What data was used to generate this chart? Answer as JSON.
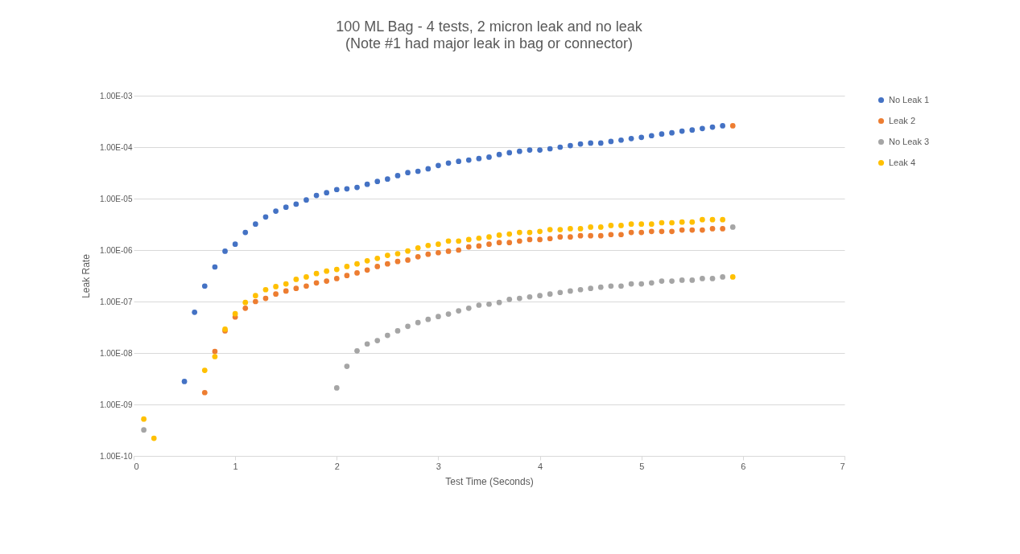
{
  "chart_data": {
    "type": "scatter",
    "title": "100 ML Bag - 4 tests, 2 micron leak and no leak",
    "subtitle": "(Note #1 had major leak in bag or connector)",
    "xlabel": "Test Time (Seconds)",
    "ylabel": "Leak Rate",
    "log": "y",
    "grid": "y",
    "legend": "right",
    "marker": "circle",
    "xlim": [
      0,
      7
    ],
    "xticks": [
      0,
      1,
      2,
      3,
      4,
      5,
      6,
      7
    ],
    "ylim": [
      1e-10,
      0.001
    ],
    "yticks": [
      {
        "value": 1e-10,
        "label": "1.00E-10"
      },
      {
        "value": 1e-09,
        "label": "1.00E-09"
      },
      {
        "value": 1e-08,
        "label": "1.00E-08"
      },
      {
        "value": 1e-07,
        "label": "1.00E-07"
      },
      {
        "value": 1e-06,
        "label": "1.00E-06"
      },
      {
        "value": 1e-05,
        "label": "1.00E-05"
      },
      {
        "value": 0.0001,
        "label": "1.00E-04"
      },
      {
        "value": 0.001,
        "label": "1.00E-03"
      }
    ],
    "series": [
      {
        "name": "No Leak 1",
        "color": "#4472c4",
        "x": [
          0.5,
          0.6,
          0.7,
          0.8,
          0.9,
          1.0,
          1.1,
          1.2,
          1.3,
          1.4,
          1.5,
          1.6,
          1.7,
          1.8,
          1.9,
          2.0,
          2.1,
          2.2,
          2.3,
          2.4,
          2.5,
          2.6,
          2.7,
          2.8,
          2.9,
          3.0,
          3.1,
          3.2,
          3.3,
          3.4,
          3.5,
          3.6,
          3.7,
          3.8,
          3.9,
          4.0,
          4.1,
          4.2,
          4.3,
          4.4,
          4.5,
          4.6,
          4.7,
          4.8,
          4.9,
          5.0,
          5.1,
          5.2,
          5.3,
          5.4,
          5.5,
          5.6,
          5.7,
          5.8
        ],
        "values": [
          2.8e-09,
          6.2e-08,
          2e-07,
          4.7e-07,
          9.5e-07,
          1.3e-06,
          2.2e-06,
          3.2e-06,
          4.4e-06,
          5.7e-06,
          6.8e-06,
          7.8e-06,
          9.4e-06,
          1.15e-05,
          1.3e-05,
          1.5e-05,
          1.55e-05,
          1.65e-05,
          1.9e-05,
          2.15e-05,
          2.4e-05,
          2.8e-05,
          3.2e-05,
          3.4e-05,
          3.8e-05,
          4.4e-05,
          4.9e-05,
          5.3e-05,
          5.6e-05,
          6e-05,
          6.4e-05,
          7.2e-05,
          7.8e-05,
          8.3e-05,
          8.8e-05,
          8.8e-05,
          9.3e-05,
          0.0001,
          0.000107,
          0.000115,
          0.00012,
          0.00012,
          0.000129,
          0.000137,
          0.000147,
          0.000155,
          0.000167,
          0.00018,
          0.00019,
          0.000205,
          0.000215,
          0.00023,
          0.000245,
          0.00026
        ]
      },
      {
        "name": "Leak 2",
        "color": "#ed7d31",
        "x": [
          0.7,
          0.8,
          0.9,
          1.0,
          1.1,
          1.2,
          1.3,
          1.4,
          1.5,
          1.6,
          1.7,
          1.8,
          1.9,
          2.0,
          2.1,
          2.2,
          2.3,
          2.4,
          2.5,
          2.6,
          2.7,
          2.8,
          2.9,
          3.0,
          3.1,
          3.2,
          3.3,
          3.4,
          3.5,
          3.6,
          3.7,
          3.8,
          3.9,
          4.0,
          4.1,
          4.2,
          4.3,
          4.4,
          4.5,
          4.6,
          4.7,
          4.8,
          4.9,
          5.0,
          5.1,
          5.2,
          5.3,
          5.4,
          5.5,
          5.6,
          5.7,
          5.8,
          5.9
        ],
        "values": [
          1.7e-09,
          1.07e-08,
          2.7e-08,
          5e-08,
          7.4e-08,
          1e-07,
          1.15e-07,
          1.4e-07,
          1.6e-07,
          1.8e-07,
          2e-07,
          2.3e-07,
          2.5e-07,
          2.8e-07,
          3.2e-07,
          3.6e-07,
          4.1e-07,
          4.8e-07,
          5.4e-07,
          6e-07,
          6.4e-07,
          7.4e-07,
          8.3e-07,
          8.9e-07,
          9.5e-07,
          1e-06,
          1.15e-06,
          1.2e-06,
          1.3e-06,
          1.4e-06,
          1.4e-06,
          1.5e-06,
          1.6e-06,
          1.6e-06,
          1.67e-06,
          1.8e-06,
          1.8e-06,
          1.9e-06,
          1.9e-06,
          1.9e-06,
          2e-06,
          2e-06,
          2.2e-06,
          2.2e-06,
          2.3e-06,
          2.3e-06,
          2.3e-06,
          2.45e-06,
          2.45e-06,
          2.45e-06,
          2.6e-06,
          2.6e-06,
          0.00026
        ]
      },
      {
        "name": "No Leak 3",
        "color": "#a5a5a5",
        "x": [
          0.1,
          2.0,
          2.1,
          2.2,
          2.3,
          2.4,
          2.5,
          2.6,
          2.7,
          2.8,
          2.9,
          3.0,
          3.1,
          3.2,
          3.3,
          3.4,
          3.5,
          3.6,
          3.7,
          3.8,
          3.9,
          4.0,
          4.1,
          4.2,
          4.3,
          4.4,
          4.5,
          4.6,
          4.7,
          4.8,
          4.9,
          5.0,
          5.1,
          5.2,
          5.3,
          5.4,
          5.5,
          5.6,
          5.7,
          5.8,
          5.9
        ],
        "values": [
          3.2e-10,
          2.1e-09,
          5.5e-09,
          1.1e-08,
          1.5e-08,
          1.74e-08,
          2.2e-08,
          2.7e-08,
          3.3e-08,
          3.9e-08,
          4.5e-08,
          5.1e-08,
          5.7e-08,
          6.6e-08,
          7.4e-08,
          8.5e-08,
          8.9e-08,
          9.6e-08,
          1.1e-07,
          1.15e-07,
          1.23e-07,
          1.3e-07,
          1.4e-07,
          1.5e-07,
          1.6e-07,
          1.7e-07,
          1.8e-07,
          1.9e-07,
          2e-07,
          2e-07,
          2.2e-07,
          2.2e-07,
          2.3e-07,
          2.5e-07,
          2.5e-07,
          2.6e-07,
          2.6e-07,
          2.8e-07,
          2.8e-07,
          3e-07,
          2.8e-06
        ]
      },
      {
        "name": "Leak 4",
        "color": "#ffc000",
        "x": [
          0.1,
          0.2,
          0.7,
          0.8,
          0.9,
          1.0,
          1.1,
          1.2,
          1.3,
          1.4,
          1.5,
          1.6,
          1.7,
          1.8,
          1.9,
          2.0,
          2.1,
          2.2,
          2.3,
          2.4,
          2.5,
          2.6,
          2.7,
          2.8,
          2.9,
          3.0,
          3.1,
          3.2,
          3.3,
          3.4,
          3.5,
          3.6,
          3.7,
          3.8,
          3.9,
          4.0,
          4.1,
          4.2,
          4.3,
          4.4,
          4.5,
          4.6,
          4.7,
          4.8,
          4.9,
          5.0,
          5.1,
          5.2,
          5.3,
          5.4,
          5.5,
          5.6,
          5.7,
          5.8,
          5.9
        ],
        "values": [
          5.2e-10,
          2.2e-10,
          4.6e-09,
          8.5e-09,
          2.9e-08,
          5.8e-08,
          9.6e-08,
          1.3e-07,
          1.7e-07,
          1.95e-07,
          2.2e-07,
          2.7e-07,
          3e-07,
          3.5e-07,
          3.9e-07,
          4.2e-07,
          4.8e-07,
          5.4e-07,
          6.2e-07,
          6.9e-07,
          7.9e-07,
          8.5e-07,
          9.6e-07,
          1.1e-06,
          1.23e-06,
          1.3e-06,
          1.5e-06,
          1.5e-06,
          1.6e-06,
          1.7e-06,
          1.8e-06,
          1.95e-06,
          2.05e-06,
          2.2e-06,
          2.2e-06,
          2.3e-06,
          2.5e-06,
          2.5e-06,
          2.6e-06,
          2.6e-06,
          2.8e-06,
          2.8e-06,
          3e-06,
          3e-06,
          3.2e-06,
          3.2e-06,
          3.2e-06,
          3.4e-06,
          3.4e-06,
          3.5e-06,
          3.5e-06,
          3.9e-06,
          3.9e-06,
          3.9e-06,
          3e-07
        ]
      }
    ]
  }
}
